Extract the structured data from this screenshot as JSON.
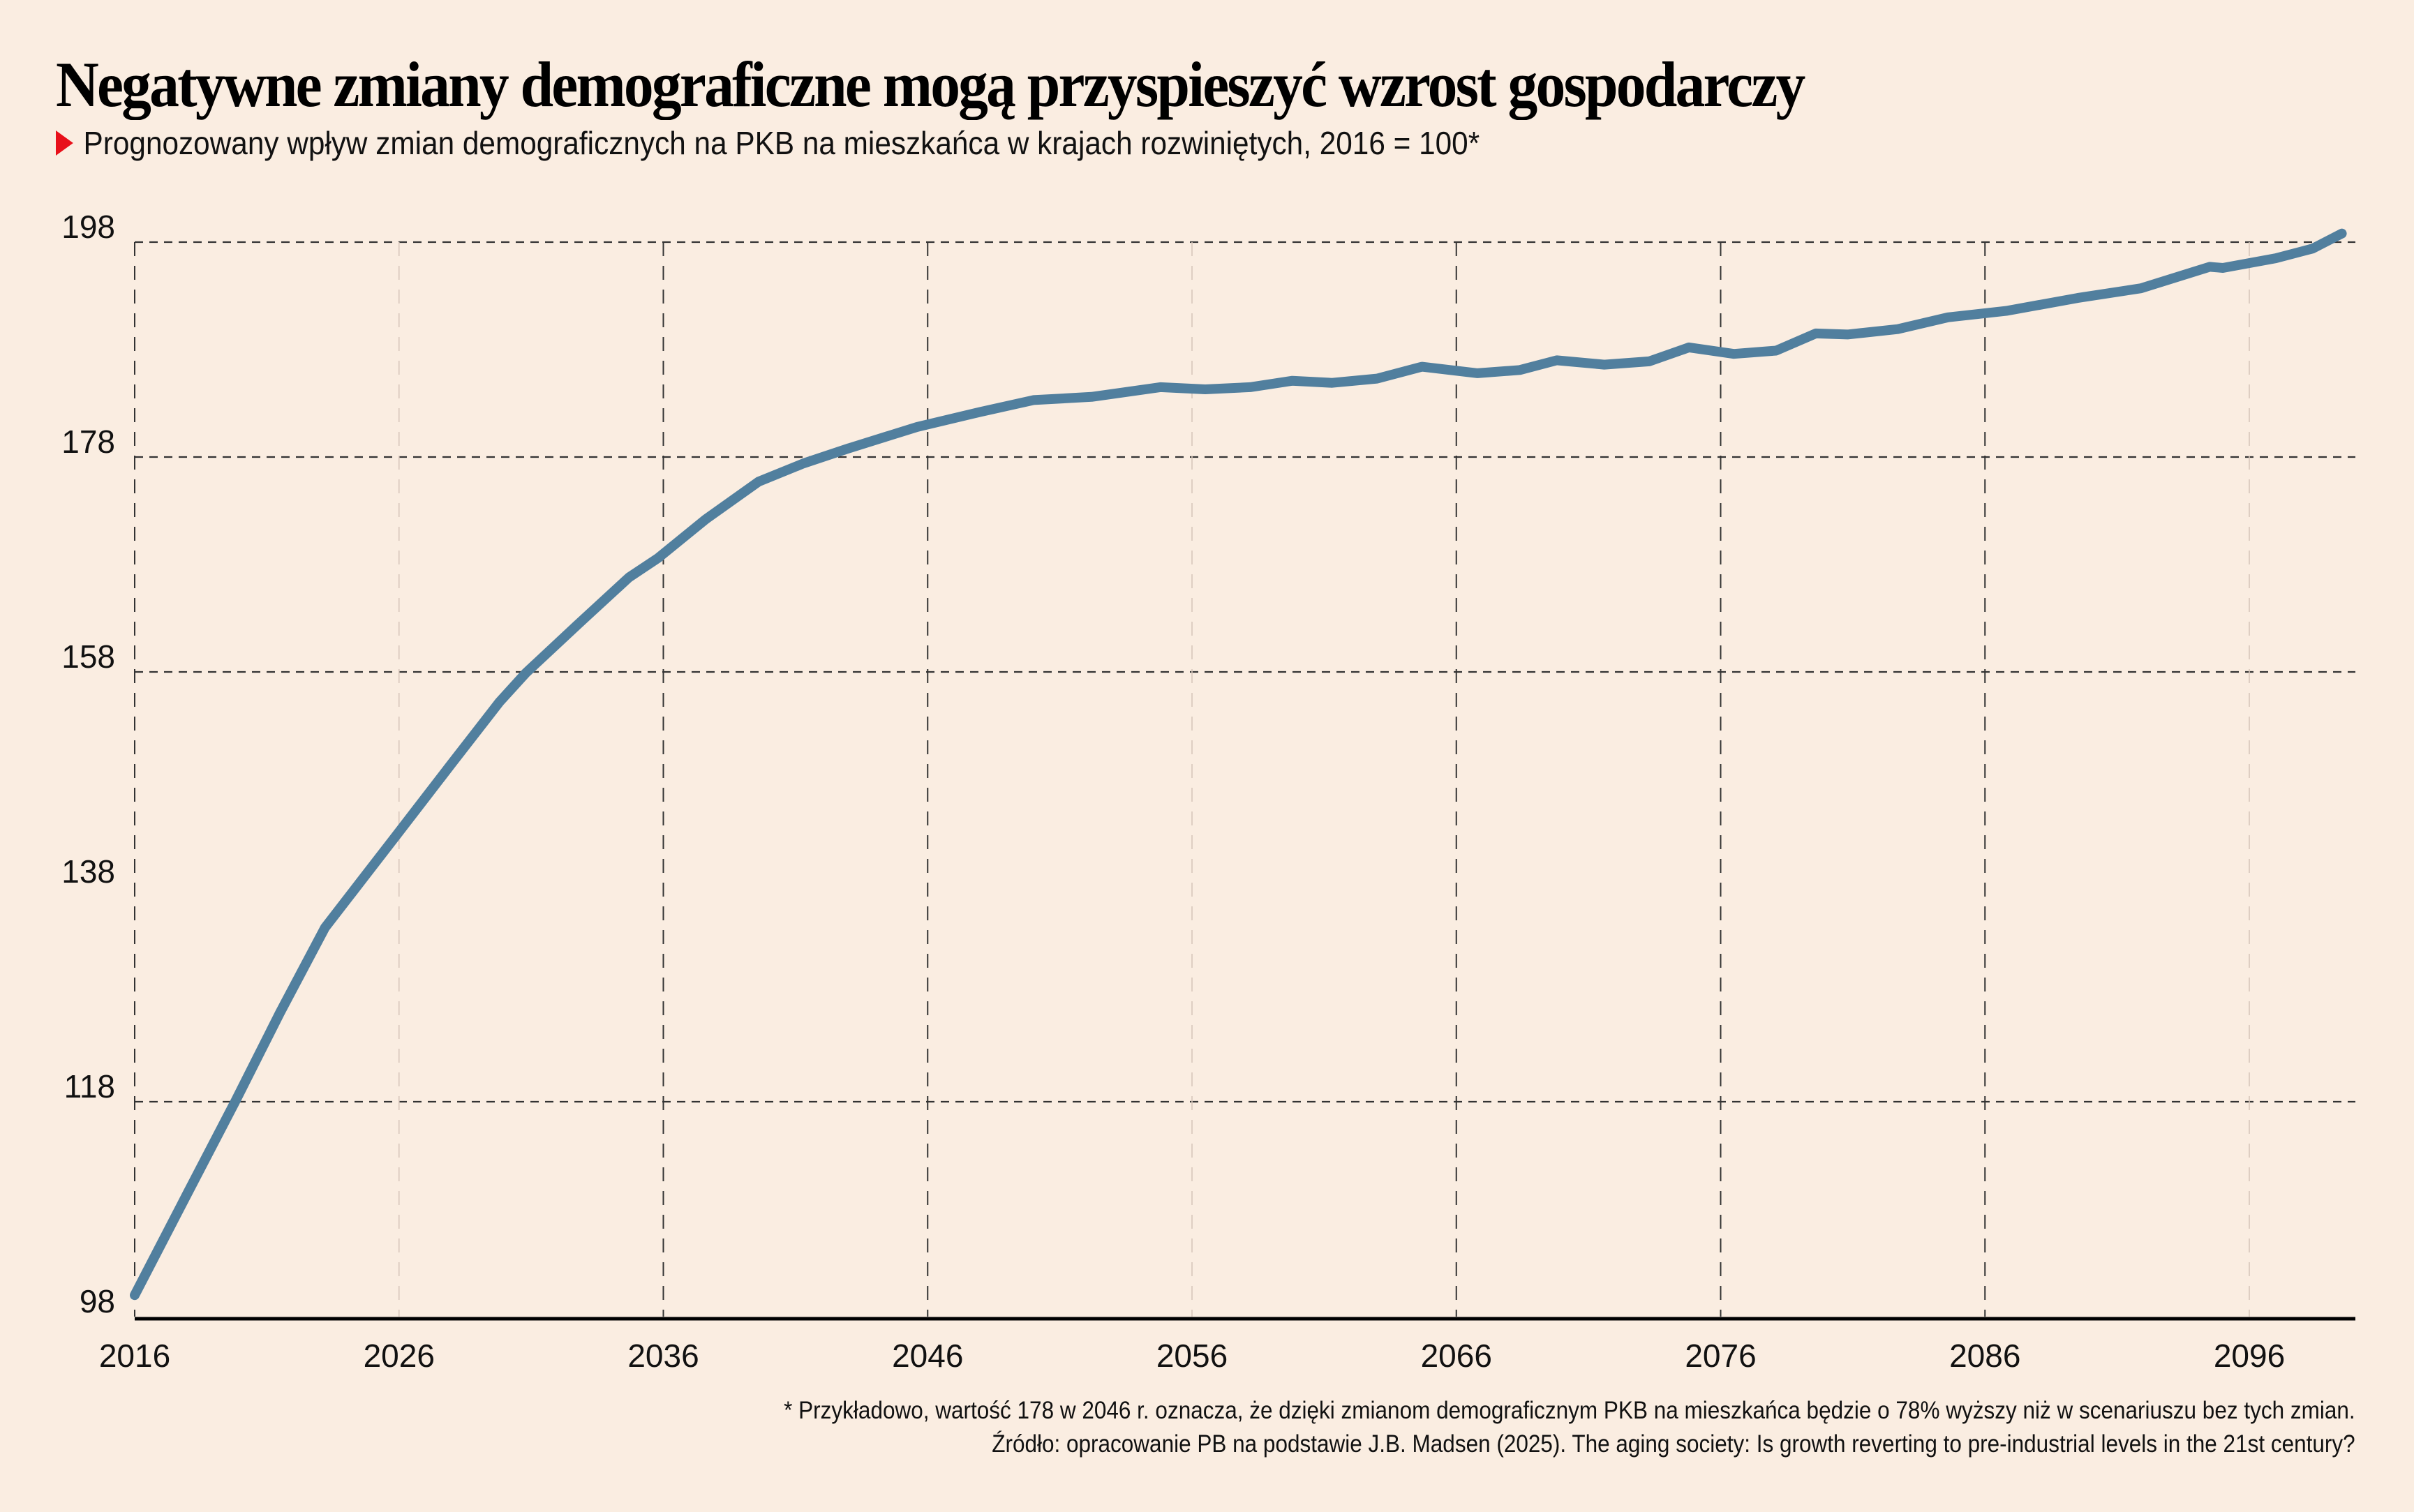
{
  "header": {
    "title": "Negatywne zmiany demograficzne mogą przyspieszyć wzrost gospodarczy",
    "subtitle": "Prognozowany wpływ zmian demograficznych na PKB na mieszkańca w krajach rozwiniętych, 2016 = 100*",
    "bullet_icon": "red-triangle-icon"
  },
  "footer": {
    "note": "* Przykładowo, wartość 178 w 2046 r. oznacza, że dzięki zmianom demograficznym PKB na mieszkańca będzie o 78% wyższy niż w scenariuszu bez tych zmian.",
    "source": "Źródło: opracowanie PB na podstawie J.B. Madsen (2025). The aging society: Is growth reverting to pre-industrial levels in the 21st century?"
  },
  "colors": {
    "background": "#faede1",
    "line": "#517f9e",
    "bullet": "#e8101a",
    "axis": "#000000",
    "grid": "#333333",
    "grid_faint": "#d8c7bb"
  },
  "chart_data": {
    "type": "line",
    "title": "Negatywne zmiany demograficzne mogą przyspieszyć wzrost gospodarczy",
    "subtitle": "Prognozowany wpływ zmian demograficznych na PKB na mieszkańca w krajach rozwiniętych, 2016 = 100*",
    "xlabel": "",
    "ylabel": "",
    "xlim": [
      2016,
      2101
    ],
    "ylim": [
      98,
      198
    ],
    "x_ticks": [
      2016,
      2026,
      2036,
      2046,
      2056,
      2066,
      2076,
      2086,
      2096
    ],
    "x_tick_labels": [
      "2016",
      "2026",
      "2036",
      "2046",
      "2056",
      "2066",
      "2076",
      "2086",
      "2096"
    ],
    "y_ticks": [
      98,
      118,
      138,
      158,
      178,
      198
    ],
    "y_tick_labels": [
      "98",
      "118",
      "138",
      "158",
      "178",
      "198"
    ],
    "y_gridlines": [
      118,
      158,
      178,
      198
    ],
    "x_gridlines_strong": [
      2016,
      2036,
      2046,
      2066,
      2076,
      2086
    ],
    "x_gridlines_faint": [
      2026,
      2056,
      2096
    ],
    "grid": true,
    "legend": "none",
    "series": [
      {
        "name": "PKB na mieszkańca (2016 = 100)",
        "x": [
          2016,
          2018,
          2019.8,
          2021.5,
          2023.2,
          2025.9,
          2028,
          2029.8,
          2030.8,
          2032.8,
          2034.7,
          2035.8,
          2037.6,
          2039.6,
          2041.3,
          2043,
          2045.6,
          2048,
          2050,
          2052.2,
          2054.8,
          2056.5,
          2058.2,
          2059.8,
          2061.3,
          2063,
          2064.7,
          2066.8,
          2068.4,
          2069.8,
          2071.6,
          2073.3,
          2074.8,
          2076.5,
          2078.1,
          2079.6,
          2080.8,
          2082.7,
          2084.6,
          2086.8,
          2089.5,
          2091.9,
          2094.5,
          2095.0,
          2097.0,
          2098.4,
          2099.5
        ],
        "values": [
          100,
          109.5,
          118,
          126.3,
          134.2,
          142.8,
          149.5,
          155.2,
          157.9,
          162.5,
          166.8,
          168.6,
          172.2,
          175.7,
          177.4,
          178.8,
          180.8,
          182.2,
          183.3,
          183.6,
          184.5,
          184.3,
          184.5,
          185.1,
          184.9,
          185.3,
          186.4,
          185.8,
          186.1,
          187.0,
          186.6,
          186.9,
          188.2,
          187.6,
          187.9,
          189.5,
          189.4,
          189.9,
          191.0,
          191.6,
          192.8,
          193.7,
          195.7,
          195.6,
          196.5,
          197.4,
          198.8
        ]
      }
    ],
    "annotations": []
  }
}
